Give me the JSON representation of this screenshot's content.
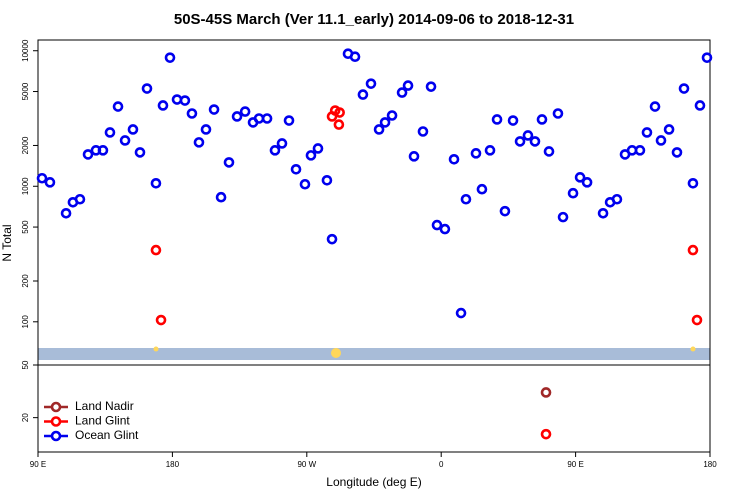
{
  "chart_data": [
    {
      "type": "scatter",
      "title": "50S-45S March (Ver 11.1_early)   2014-09-06 to 2018-12-31",
      "y_label": "N Total",
      "log_y": true,
      "xlim": [
        90,
        540
      ],
      "ylim": [
        48,
        12000
      ],
      "yticks": [
        100,
        200,
        500,
        1000,
        2000,
        5000,
        10000
      ],
      "series": [
        {
          "color": "#0000ee",
          "x": [
            92.7,
            98.0,
            108.8,
            113.4,
            118.1,
            123.5,
            128.8,
            133.5,
            138.2,
            143.6,
            148.3,
            153.6,
            158.3,
            163.0,
            169.0,
            173.7,
            178.4,
            183.1,
            188.4,
            193.1,
            197.8,
            202.5,
            207.9,
            212.6,
            217.9,
            223.3,
            228.7,
            234.0,
            238.0,
            243.4,
            248.7,
            253.4,
            258.1,
            262.8,
            268.8,
            272.8,
            277.5,
            283.5,
            286.9,
            297.6,
            302.3,
            307.6,
            313.0,
            318.4,
            322.4,
            327.1,
            333.8,
            337.8,
            341.8,
            347.8,
            353.2,
            357.2,
            362.5,
            368.6,
            373.3,
            376.6,
            383.3,
            387.3,
            392.7,
            397.4,
            402.7,
            408.1,
            412.8,
            418.1,
            422.8,
            427.5,
            432.2,
            438.2,
            441.6,
            448.3,
            453.0,
            457.7,
            468.4,
            473.1,
            477.7,
            483.1,
            487.8,
            493.1,
            497.8,
            503.2,
            507.2,
            512.6,
            517.9,
            522.6,
            528.6,
            533.3,
            538.0
          ],
          "values": [
            1146,
            1069,
            632,
            762,
            802,
            1718,
            1841,
            1841,
            2495,
            3873,
            2178,
            2624,
            1778,
            5260,
            1052,
            3945,
            8890,
            4365,
            4290,
            3443,
            2108,
            2624,
            3681,
            830,
            1500,
            3273,
            3556,
            2958,
            3162,
            3162,
            1841,
            2070,
            3055,
            1334,
            1035,
            1690,
            1901,
            1107,
            407,
            9506,
            9036,
            4745,
            5716,
            2624,
            2958,
            3327,
            4909,
            5529,
            1663,
            2535,
            5433,
            517,
            483,
            1581,
            116,
            802,
            1750,
            951,
            1841,
            3112,
            655,
            3055,
            2143,
            2371,
            2143,
            3112,
            1807,
            3443,
            592,
            889,
            1164,
            1069,
            632,
            762,
            802,
            1718,
            1841,
            1841,
            2495,
            3873,
            2178,
            2624,
            1778,
            5260,
            1052,
            3945,
            8890
          ]
        },
        {
          "color": "#ff0000",
          "x": [
            169.0,
            172.4,
            286.9,
            289.0,
            292.0,
            291.5,
            528.6,
            531.3
          ],
          "values": [
            338,
            103,
            3273,
            3620,
            3500,
            2851,
            338,
            103
          ]
        }
      ]
    },
    {
      "type": "scatter",
      "x_label": "Longitude (deg E)",
      "log_y": true,
      "xlim": [
        90,
        540
      ],
      "ylim": [
        11,
        50
      ],
      "xticks": [
        {
          "value": 90,
          "label": "90 E"
        },
        180,
        {
          "value": 270,
          "label": "90 W"
        },
        {
          "value": 360,
          "label": "0"
        },
        {
          "value": 450,
          "label": "90 E"
        },
        {
          "value": 540,
          "label": "180"
        }
      ],
      "yticks": [
        20,
        50
      ],
      "legend": "lower left",
      "series": [
        {
          "name": "Land Nadir",
          "color": "#a02828",
          "x": [
            430.2
          ],
          "values": [
            31
          ]
        },
        {
          "name": "Land Glint",
          "color": "#ff0000",
          "x": [
            430.2
          ],
          "values": [
            15
          ]
        },
        {
          "name": "Ocean Glint",
          "color": "#0000ee",
          "x": [],
          "values": []
        }
      ]
    }
  ]
}
